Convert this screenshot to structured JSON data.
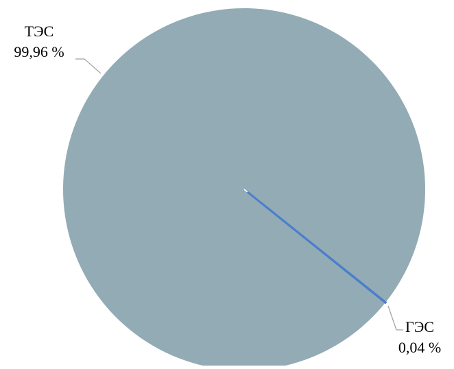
{
  "chart_data": {
    "type": "pie",
    "title": "",
    "categories": [
      "ТЭС",
      "ГЭС"
    ],
    "values": [
      99.96,
      0.04
    ],
    "value_labels": [
      "99,96 %",
      "0,04 %"
    ],
    "colors": [
      "#93abb4",
      "#4b7fcc"
    ],
    "legend": "none"
  }
}
